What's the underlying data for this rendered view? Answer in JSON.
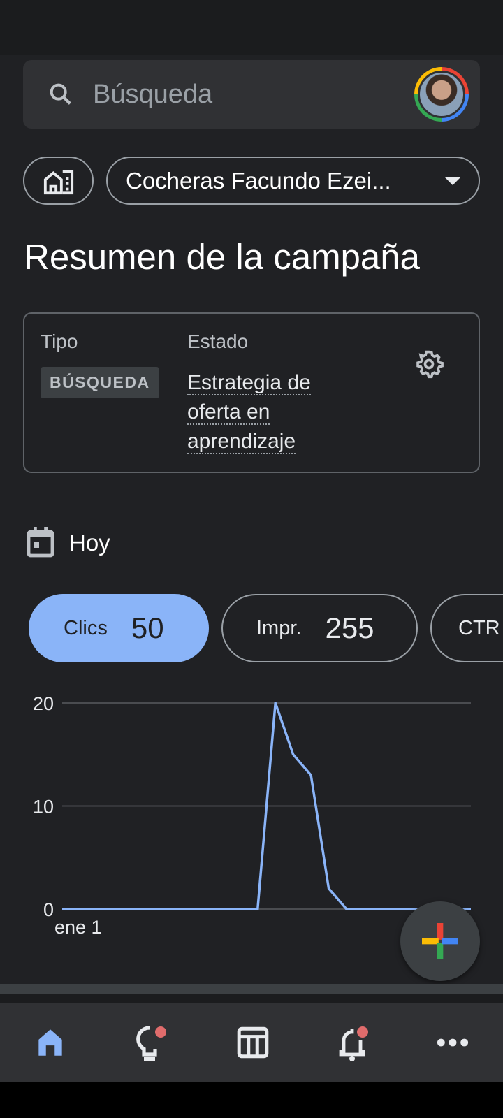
{
  "search": {
    "placeholder": "Búsqueda",
    "icon": "search-icon"
  },
  "account": {
    "name": "Cocheras Facundo Ezei...",
    "icon": "building-icon"
  },
  "page_title": "Resumen de la campaña",
  "summary": {
    "tipo_label": "Tipo",
    "tipo_value": "BÚSQUEDA",
    "estado_label": "Estado",
    "estado_value": "Estrategia de oferta en aprendizaje"
  },
  "date": {
    "label": "Hoy"
  },
  "metrics": [
    {
      "label": "Clics",
      "value": "50",
      "selected": true
    },
    {
      "label": "Impr.",
      "value": "255"
    },
    {
      "label": "CTR"
    }
  ],
  "colors": {
    "accent": "#8ab4f8",
    "background": "#202124",
    "surface": "#303134",
    "badge_dot": "#e06c6c"
  },
  "chart_data": {
    "type": "line",
    "x_tick_labels": [
      "ene 1"
    ],
    "y_ticks": [
      0,
      10,
      20
    ],
    "ylim": [
      0,
      20
    ],
    "grid": true,
    "series": [
      {
        "values": [
          0,
          0,
          0,
          0,
          0,
          0,
          0,
          0,
          0,
          0,
          0,
          0,
          20,
          15,
          13,
          2,
          0,
          0,
          0,
          0,
          0,
          0,
          0,
          0
        ],
        "color": "#8ab4f8"
      }
    ]
  },
  "nav": [
    {
      "name": "home",
      "active": true
    },
    {
      "name": "recommendations",
      "badge": true
    },
    {
      "name": "campaigns"
    },
    {
      "name": "notifications",
      "badge": true
    },
    {
      "name": "more"
    }
  ]
}
